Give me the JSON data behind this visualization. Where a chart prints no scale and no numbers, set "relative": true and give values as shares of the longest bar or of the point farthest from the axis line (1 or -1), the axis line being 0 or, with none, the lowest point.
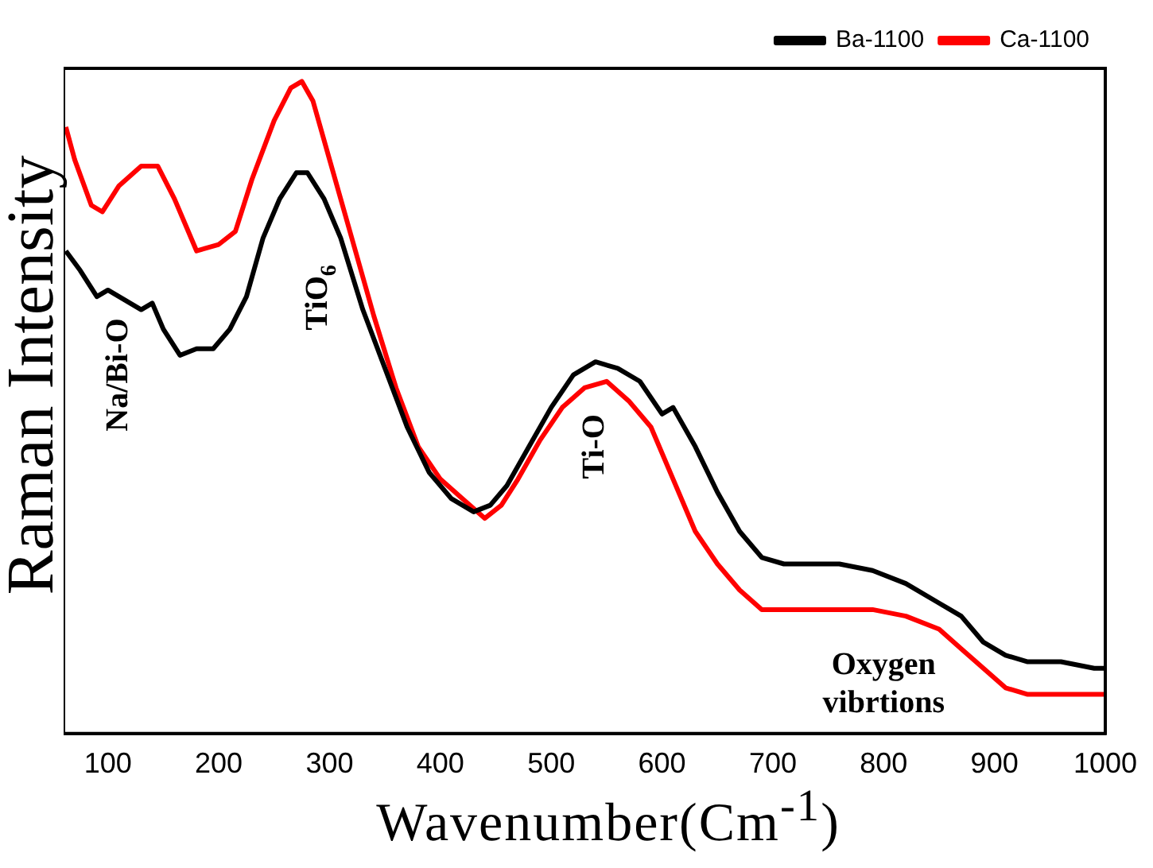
{
  "chart_data": {
    "type": "line",
    "relative": true,
    "xlabel": "Wavenumber(Cm$^{-1}$)",
    "ylabel": "Raman Intensity",
    "xlim": [
      60,
      1000
    ],
    "xticks": [
      100,
      200,
      300,
      400,
      500,
      600,
      700,
      800,
      900,
      1000
    ],
    "grid": false,
    "legend": "top right",
    "annotations": [
      "Na/Bi-O",
      "TiO$_{6}$",
      "Ti-O",
      "Oxygen vibrtions"
    ],
    "series": [
      {
        "name": "Ba-1100",
        "color": "#000000",
        "x": [
          62,
          75,
          90,
          100,
          110,
          130,
          140,
          150,
          165,
          180,
          195,
          210,
          225,
          240,
          255,
          270,
          280,
          295,
          310,
          330,
          350,
          370,
          390,
          410,
          430,
          445,
          460,
          480,
          500,
          520,
          540,
          560,
          580,
          600,
          610,
          630,
          650,
          670,
          690,
          710,
          730,
          760,
          790,
          820,
          850,
          870,
          890,
          910,
          930,
          960,
          990,
          1000
        ],
        "values": [
          0.74,
          0.71,
          0.67,
          0.68,
          0.67,
          0.65,
          0.66,
          0.62,
          0.58,
          0.59,
          0.59,
          0.62,
          0.67,
          0.76,
          0.82,
          0.86,
          0.86,
          0.82,
          0.76,
          0.65,
          0.56,
          0.47,
          0.4,
          0.36,
          0.34,
          0.35,
          0.38,
          0.44,
          0.5,
          0.55,
          0.57,
          0.56,
          0.54,
          0.49,
          0.5,
          0.44,
          0.37,
          0.31,
          0.27,
          0.26,
          0.26,
          0.26,
          0.25,
          0.23,
          0.2,
          0.18,
          0.14,
          0.12,
          0.11,
          0.11,
          0.1,
          0.1
        ]
      },
      {
        "name": "Ca-1100",
        "color": "#ff0000",
        "x": [
          62,
          70,
          85,
          95,
          110,
          130,
          145,
          160,
          180,
          200,
          215,
          230,
          250,
          265,
          275,
          285,
          300,
          320,
          340,
          360,
          380,
          400,
          420,
          440,
          455,
          470,
          490,
          510,
          530,
          550,
          570,
          590,
          610,
          630,
          650,
          670,
          690,
          710,
          730,
          760,
          790,
          820,
          850,
          870,
          890,
          910,
          930,
          960,
          1000
        ],
        "values": [
          0.93,
          0.88,
          0.81,
          0.8,
          0.84,
          0.87,
          0.87,
          0.82,
          0.74,
          0.75,
          0.77,
          0.85,
          0.94,
          0.99,
          1.0,
          0.97,
          0.88,
          0.76,
          0.64,
          0.53,
          0.44,
          0.39,
          0.36,
          0.33,
          0.35,
          0.39,
          0.45,
          0.5,
          0.53,
          0.54,
          0.51,
          0.47,
          0.39,
          0.31,
          0.26,
          0.22,
          0.19,
          0.19,
          0.19,
          0.19,
          0.19,
          0.18,
          0.16,
          0.13,
          0.1,
          0.07,
          0.06,
          0.06,
          0.06
        ]
      }
    ]
  }
}
